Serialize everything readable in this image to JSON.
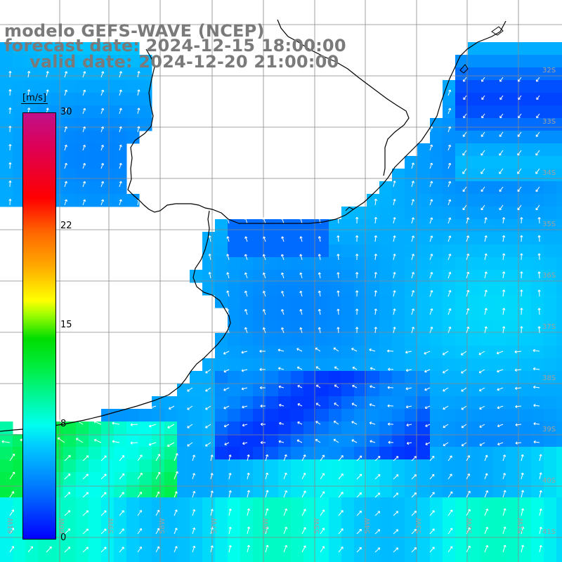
{
  "title": {
    "model": "modelo GEFS-WAVE (NCEP)",
    "forecast": "forecast date: 2024-12-15 18:00:00",
    "valid": "valid date: 2024-12-20 21:00:00"
  },
  "colorbar": {
    "unit": "[m/s]",
    "ticks": [
      "30",
      "22",
      "15",
      "8",
      "0"
    ],
    "tick_values": [
      30,
      22,
      15,
      8,
      0
    ],
    "range": [
      0,
      30
    ]
  },
  "axes": {
    "lat_labels": [
      "32S",
      "33S",
      "34S",
      "35S",
      "36S",
      "37S",
      "38S",
      "39S",
      "40S",
      "41S"
    ],
    "lon_labels": [
      "61W",
      "60W",
      "59W",
      "58W",
      "57W",
      "56W",
      "55W",
      "54W",
      "53W",
      "52W",
      "51W"
    ]
  },
  "colors": {
    "land": "#ffffff",
    "coast": "#000000",
    "grid": "#888888",
    "arrows": "#ffffff",
    "title": "#7a7a7a"
  }
}
